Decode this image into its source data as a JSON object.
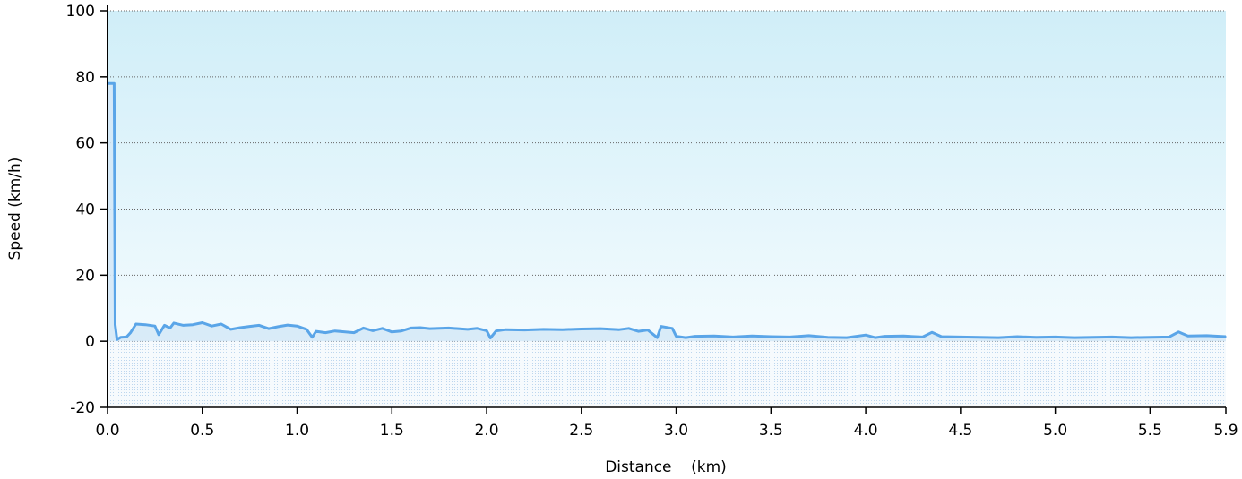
{
  "chart_data": {
    "type": "area",
    "title": "",
    "xlabel": "Distance    (km)",
    "ylabel": "Speed (km/h)",
    "xlim": [
      0.0,
      5.9
    ],
    "ylim": [
      -20,
      100
    ],
    "x_ticks": [
      0.0,
      0.5,
      1.0,
      1.5,
      2.0,
      2.5,
      3.0,
      3.5,
      4.0,
      4.5,
      5.0,
      5.5,
      5.9
    ],
    "x_tick_labels": [
      "0.0",
      "0.5",
      "1.0",
      "1.5",
      "2.0",
      "2.5",
      "3.0",
      "3.5",
      "4.0",
      "4.5",
      "5.0",
      "5.5",
      "5.9"
    ],
    "y_ticks": [
      -20,
      0,
      20,
      40,
      60,
      80,
      100
    ],
    "y_tick_labels": [
      "-20",
      "0",
      "20",
      "40",
      "60",
      "80",
      "100"
    ],
    "grid": "horizontal dotted",
    "legend": "none",
    "colors": {
      "line": "#5aa5e8",
      "band_top": "#d0eef8",
      "band_bottom": "#f3fbfe",
      "below_zero": "#eaf3fb",
      "grid": "#666666"
    },
    "series": [
      {
        "x": [
          0.0,
          0.03,
          0.035,
          0.04,
          0.05,
          0.07,
          0.1,
          0.12,
          0.15,
          0.2,
          0.25,
          0.27,
          0.3,
          0.33,
          0.35,
          0.4,
          0.45,
          0.5,
          0.55,
          0.6,
          0.65,
          0.7,
          0.75,
          0.8,
          0.85,
          0.9,
          0.95,
          1.0,
          1.05,
          1.08,
          1.1,
          1.15,
          1.2,
          1.3,
          1.35,
          1.4,
          1.45,
          1.5,
          1.55,
          1.6,
          1.65,
          1.7,
          1.8,
          1.9,
          1.95,
          2.0,
          2.02,
          2.05,
          2.1,
          2.2,
          2.3,
          2.4,
          2.5,
          2.6,
          2.7,
          2.75,
          2.8,
          2.85,
          2.9,
          2.92,
          2.95,
          2.98,
          3.0,
          3.05,
          3.1,
          3.2,
          3.3,
          3.4,
          3.5,
          3.6,
          3.7,
          3.8,
          3.9,
          4.0,
          4.05,
          4.1,
          4.2,
          4.3,
          4.35,
          4.4,
          4.5,
          4.6,
          4.7,
          4.8,
          4.85,
          4.9,
          5.0,
          5.1,
          5.2,
          5.3,
          5.4,
          5.5,
          5.6,
          5.65,
          5.7,
          5.8,
          5.9
        ],
        "values": [
          78,
          78,
          78,
          5,
          0.5,
          1.2,
          1.3,
          2.5,
          5.2,
          5.0,
          4.6,
          2.0,
          4.8,
          4.0,
          5.5,
          4.8,
          5.0,
          5.6,
          4.6,
          5.2,
          3.6,
          4.1,
          4.5,
          4.8,
          3.8,
          4.4,
          4.9,
          4.6,
          3.6,
          1.2,
          3.0,
          2.6,
          3.1,
          2.6,
          4.0,
          3.2,
          3.9,
          2.8,
          3.1,
          4.0,
          4.1,
          3.8,
          4.0,
          3.6,
          3.9,
          3.2,
          1.0,
          3.1,
          3.5,
          3.4,
          3.6,
          3.5,
          3.7,
          3.8,
          3.5,
          3.9,
          3.0,
          3.4,
          1.1,
          4.5,
          4.2,
          3.9,
          1.5,
          1.1,
          1.5,
          1.6,
          1.3,
          1.6,
          1.4,
          1.3,
          1.7,
          1.2,
          1.1,
          1.9,
          1.1,
          1.5,
          1.6,
          1.3,
          2.7,
          1.4,
          1.3,
          1.2,
          1.1,
          1.4,
          1.3,
          1.2,
          1.3,
          1.1,
          1.2,
          1.3,
          1.1,
          1.2,
          1.3,
          2.8,
          1.6,
          1.7,
          1.4
        ]
      }
    ]
  }
}
